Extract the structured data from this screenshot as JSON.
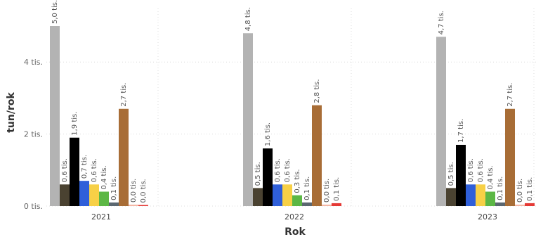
{
  "chart_data": {
    "type": "bar",
    "categories": [
      "2021",
      "2022",
      "2023"
    ],
    "xlabel": "Rok",
    "ylabel": "tun/rok",
    "ylim": [
      0,
      5.2
    ],
    "yticks": [
      {
        "value": 0,
        "label": "0 tis."
      },
      {
        "value": 2,
        "label": "2 tis."
      },
      {
        "value": 4,
        "label": "4 tis."
      }
    ],
    "grid": true,
    "series": [
      {
        "color": "#b3b3b3",
        "values": [
          5.0,
          4.8,
          4.7
        ],
        "labels": [
          "5,0 tis.",
          "4,8 tis.",
          "4,7 tis."
        ]
      },
      {
        "color": "#4a4231",
        "values": [
          0.6,
          0.5,
          0.5
        ],
        "labels": [
          "0,6 tis.",
          "0,5 tis.",
          "0,5 tis."
        ]
      },
      {
        "color": "#000000",
        "values": [
          1.9,
          1.6,
          1.7
        ],
        "labels": [
          "1,9 tis.",
          "1,6 tis.",
          "1,7 tis."
        ]
      },
      {
        "color": "#2f5fd9",
        "values": [
          0.7,
          0.6,
          0.6
        ],
        "labels": [
          "0,7 tis.",
          "0,6 tis.",
          "0,6 tis."
        ]
      },
      {
        "color": "#f7d046",
        "values": [
          0.6,
          0.6,
          0.6
        ],
        "labels": [
          "0,6 tis.",
          "0,6 tis.",
          "0,6 tis."
        ]
      },
      {
        "color": "#5cb745",
        "values": [
          0.4,
          0.3,
          0.4
        ],
        "labels": [
          "0,4 tis.",
          "0,3 tis.",
          "0,4 tis."
        ]
      },
      {
        "color": "#5b6770",
        "values": [
          0.1,
          0.1,
          0.1
        ],
        "labels": [
          "0,1 tis.",
          "0,1 tis.",
          "0,1 tis."
        ]
      },
      {
        "color": "#a86d36",
        "values": [
          2.7,
          2.8,
          2.7
        ],
        "labels": [
          "2,7 tis.",
          "2,8 tis.",
          "2,7 tis."
        ]
      },
      {
        "color": "#f4b7a5",
        "values": [
          0.04,
          0.04,
          0.04
        ],
        "labels": [
          "0,0 tis.",
          "0,0 tis.",
          "0,0 tis."
        ]
      },
      {
        "color": "#e53935",
        "values": [
          0.03,
          0.08,
          0.08
        ],
        "labels": [
          "0,0 tis.",
          "0,1 tis.",
          "0,1 tis."
        ]
      }
    ]
  }
}
